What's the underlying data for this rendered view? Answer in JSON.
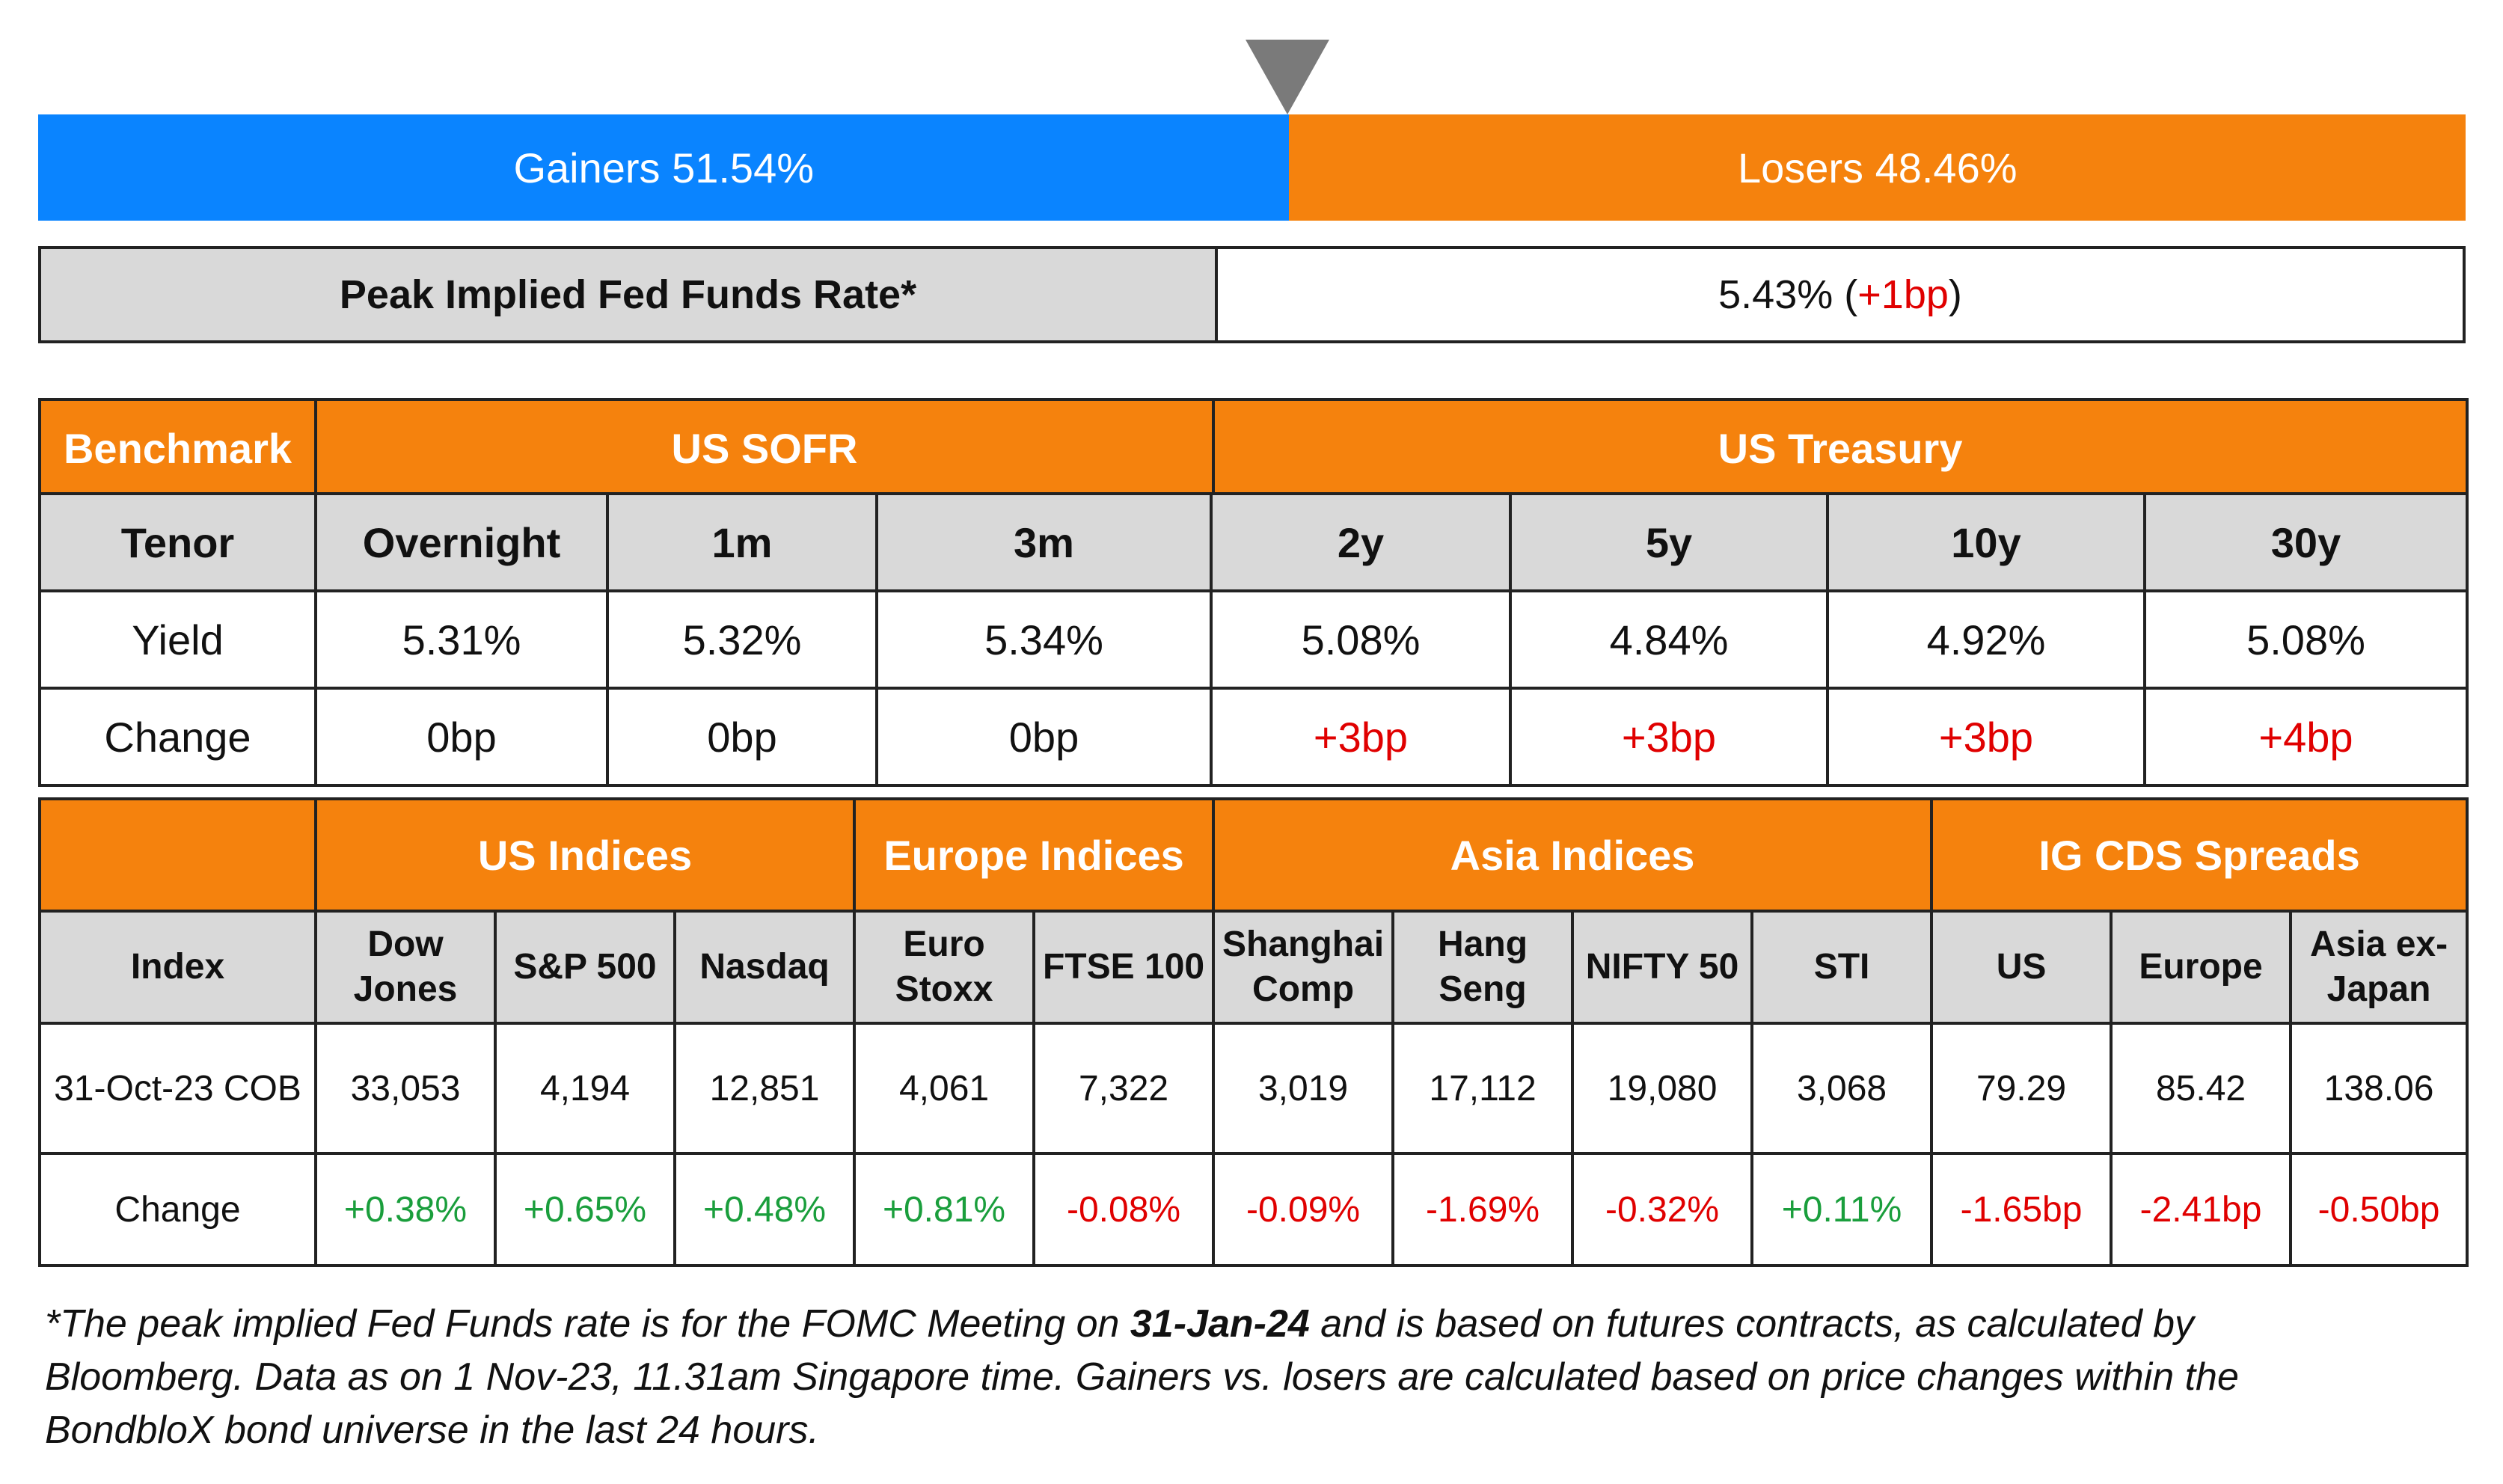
{
  "breadth": {
    "gainers_label": "Gainers 51.54%",
    "losers_label": "Losers 48.46%",
    "gainers_pct": 51.54,
    "losers_pct": 48.46,
    "gainers_color": "#0a84ff",
    "losers_color": "#f5820d"
  },
  "fed": {
    "label": "Peak Implied Fed Funds Rate*",
    "value": "5.43%",
    "open": " (",
    "change": "+1bp",
    "close": ")"
  },
  "rates": {
    "benchmark_label": "Benchmark",
    "sofr_label": "US SOFR",
    "treasury_label": "US Treasury",
    "tenor_label": "Tenor",
    "yield_label": "Yield",
    "change_label": "Change",
    "tenors": [
      "Overnight",
      "1m",
      "3m",
      "2y",
      "5y",
      "10y",
      "30y"
    ],
    "yields": [
      "5.31%",
      "5.32%",
      "5.34%",
      "5.08%",
      "4.84%",
      "4.92%",
      "5.08%"
    ],
    "changes": [
      "0bp",
      "0bp",
      "0bp",
      "+3bp",
      "+3bp",
      "+3bp",
      "+4bp"
    ]
  },
  "indices": {
    "groups": [
      "US Indices",
      "Europe Indices",
      "Asia Indices",
      "IG CDS Spreads"
    ],
    "index_label": "Index",
    "date_label": "31-Oct-23 COB",
    "change_label": "Change",
    "names": [
      [
        "Dow",
        "Jones"
      ],
      [
        "S&P 500"
      ],
      [
        "Nasdaq"
      ],
      [
        "Euro",
        "Stoxx"
      ],
      [
        "FTSE 100"
      ],
      [
        "Shanghai",
        "Comp"
      ],
      [
        "Hang",
        "Seng"
      ],
      [
        "NIFTY 50"
      ],
      [
        "STI"
      ],
      [
        "US"
      ],
      [
        "Europe"
      ],
      [
        "Asia ex-",
        "Japan"
      ]
    ],
    "values": [
      "33,053",
      "4,194",
      "12,851",
      "4,061",
      "7,322",
      "3,019",
      "17,112",
      "19,080",
      "3,068",
      "79.29",
      "85.42",
      "138.06"
    ],
    "changes": [
      "+0.38%",
      "+0.65%",
      "+0.48%",
      "+0.81%",
      "-0.08%",
      "-0.09%",
      "-1.69%",
      "-0.32%",
      "+0.11%",
      "-1.65bp",
      "-2.41bp",
      "-0.50bp"
    ]
  },
  "footnote": {
    "part1": "*The peak implied Fed Funds rate is for the FOMC Meeting on ",
    "date": "31-Jan-24",
    "part2": " and is based on futures contracts, as calculated by",
    "line2": "Bloomberg. Data as on 1 Nov-23, 11.31am Singapore time. Gainers vs. losers are calculated based on price changes within the",
    "line3": "BondbloX bond universe in the last 24 hours."
  }
}
